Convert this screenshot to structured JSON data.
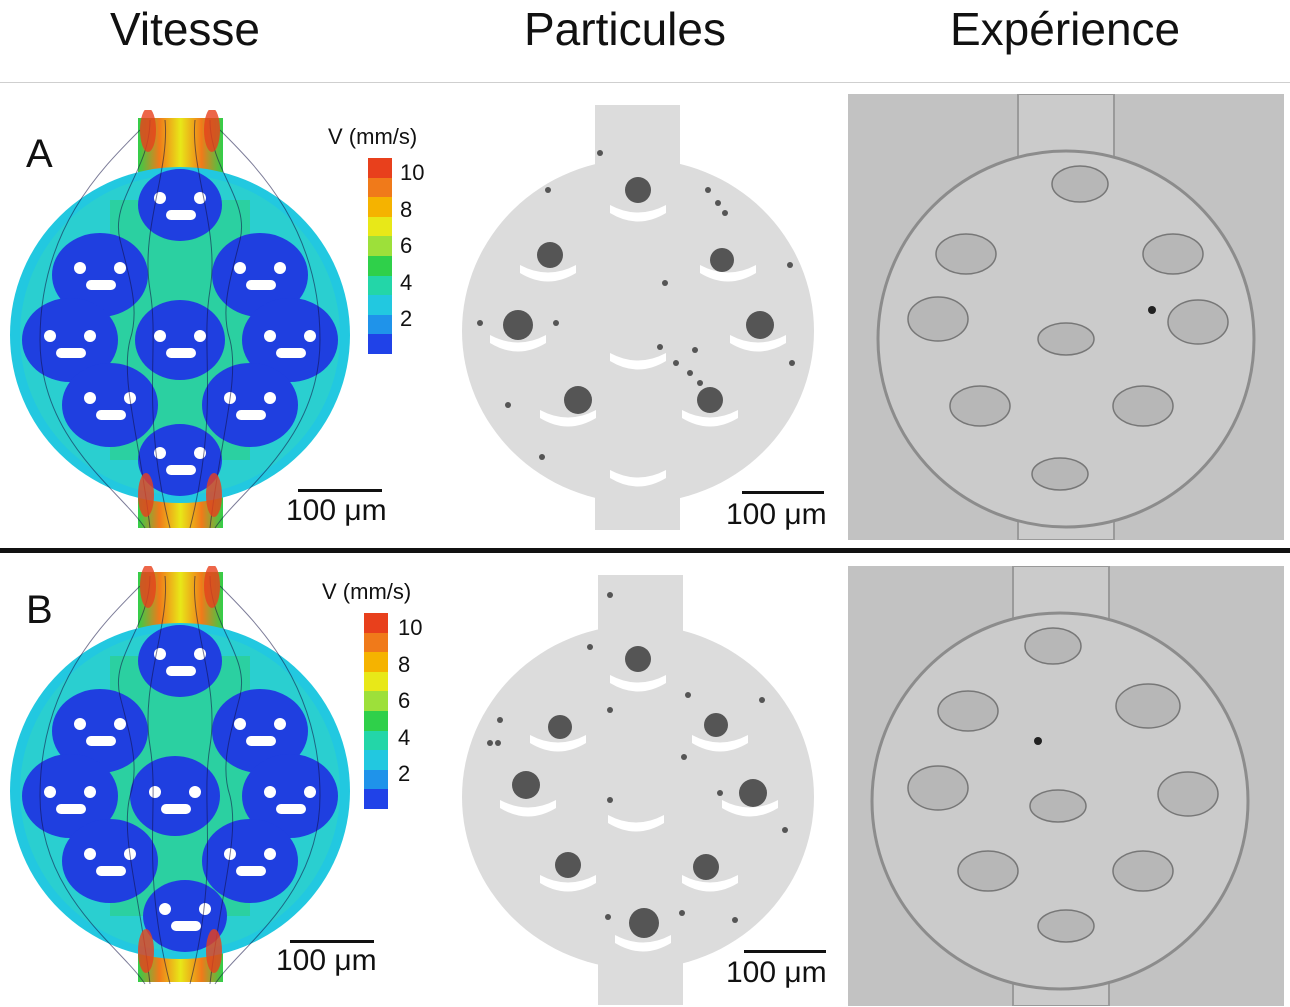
{
  "columns": {
    "velocity": "Vitesse",
    "particles": "Particules",
    "experiment": "Expérience"
  },
  "rows": [
    {
      "label": "A",
      "velocity_unit": "V (mm/s)",
      "scale_bar": "100 μm"
    },
    {
      "label": "B",
      "velocity_unit": "V (mm/s)",
      "scale_bar": "100 μm"
    }
  ],
  "colorbar": {
    "ticks": [
      "10",
      "8",
      "6",
      "4",
      "2"
    ],
    "colors": [
      "#e8401c",
      "#f07a1a",
      "#f5b300",
      "#e8e818",
      "#9de03a",
      "#2fd04a",
      "#23d6a8",
      "#22c8e0",
      "#1f93ea",
      "#2042e8"
    ]
  },
  "colors": {
    "channel_blue": "#1f3fe0",
    "channel_cyan": "#2ac8d8",
    "particle": "#555555",
    "chamber_gray": "#dcdcdc"
  }
}
